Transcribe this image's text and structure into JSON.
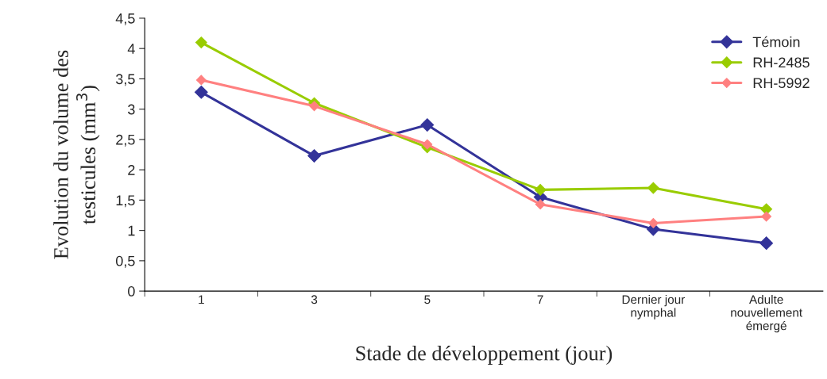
{
  "chart_data": {
    "type": "line",
    "xlabel": "Stade de développement (jour)",
    "ylabel": "Evolution du volume des\ntesticules (mm$^{3}$)",
    "categories": [
      "1",
      "3",
      "5",
      "7",
      "Dernier jour\nnymphal",
      "Adulte\nnouvellement\némergé"
    ],
    "series": [
      {
        "name": "Témoin",
        "color": "#333399",
        "values": [
          3.28,
          2.23,
          2.74,
          1.55,
          1.02,
          0.79
        ]
      },
      {
        "name": "RH-2485",
        "color": "#99cc00",
        "values": [
          4.1,
          3.1,
          2.37,
          1.67,
          1.7,
          1.35
        ]
      },
      {
        "name": "RH-5992",
        "color": "#ff8080",
        "values": [
          3.48,
          3.05,
          2.42,
          1.43,
          1.12,
          1.23
        ]
      }
    ],
    "ylim": [
      0,
      4.5
    ],
    "yticks": [
      {
        "value": 0,
        "label": "0"
      },
      {
        "value": 0.5,
        "label": "0,5"
      },
      {
        "value": 1,
        "label": "1"
      },
      {
        "value": 1.5,
        "label": "1,5"
      },
      {
        "value": 2,
        "label": "2"
      },
      {
        "value": 2.5,
        "label": "2,5"
      },
      {
        "value": 3,
        "label": "3"
      },
      {
        "value": 3.5,
        "label": "3,5"
      },
      {
        "value": 4,
        "label": "4"
      },
      {
        "value": 4.5,
        "label": "4,5"
      }
    ],
    "grid": false,
    "legend": "top right",
    "marker": "diamond",
    "line_style": "solid"
  }
}
